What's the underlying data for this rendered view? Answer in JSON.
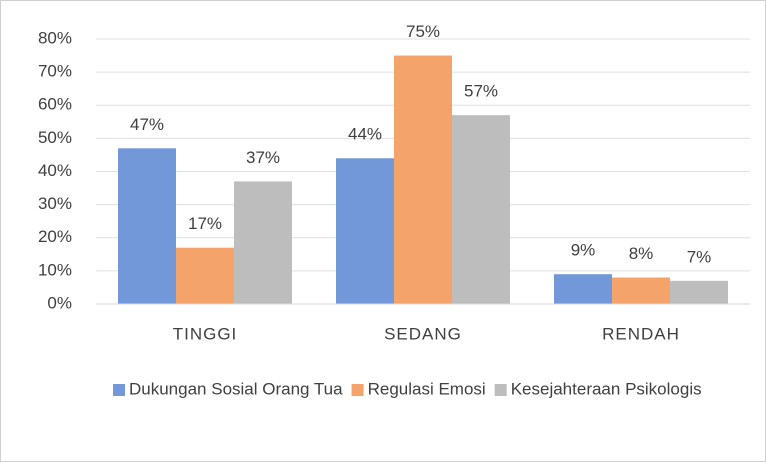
{
  "chart_data": {
    "type": "bar",
    "categories": [
      "TINGGI",
      "SEDANG",
      "RENDAH"
    ],
    "series": [
      {
        "name": "Dukungan Sosial Orang Tua",
        "color": "#7298da",
        "values": [
          47,
          44,
          9
        ],
        "value_labels": [
          "47%",
          "44%",
          "9%"
        ]
      },
      {
        "name": "Regulasi Emosi",
        "color": "#f4a36b",
        "values": [
          17,
          75,
          8
        ],
        "value_labels": [
          "17%",
          "75%",
          "8%"
        ]
      },
      {
        "name": "Kesejahteraan Psikologis",
        "color": "#bdbdbd",
        "values": [
          37,
          57,
          7
        ],
        "value_labels": [
          "37%",
          "57%",
          "7%"
        ]
      }
    ],
    "ylim": [
      0,
      80
    ],
    "yticks": [
      {
        "value": 0,
        "label": "0%"
      },
      {
        "value": 10,
        "label": "10%"
      },
      {
        "value": 20,
        "label": "20%"
      },
      {
        "value": 30,
        "label": "30%"
      },
      {
        "value": 40,
        "label": "40%"
      },
      {
        "value": 50,
        "label": "50%"
      },
      {
        "value": 60,
        "label": "60%"
      },
      {
        "value": 70,
        "label": "70%"
      },
      {
        "value": 80,
        "label": "80%"
      }
    ],
    "grid": true,
    "legend": "bottom"
  }
}
